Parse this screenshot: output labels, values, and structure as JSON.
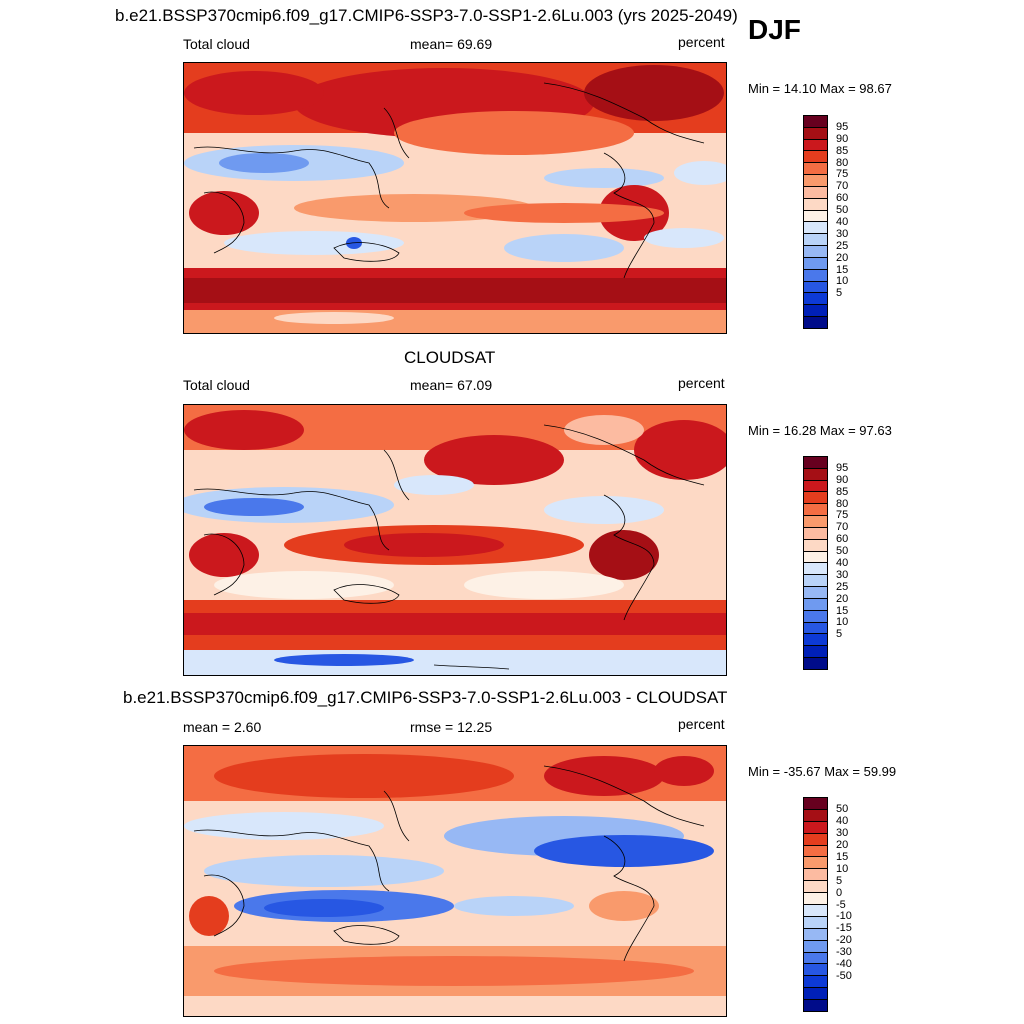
{
  "season": "DJF",
  "panels": [
    {
      "id": "model",
      "title": "b.e21.BSSP370cmip6.f09_g17.CMIP6-SSP3-7.0-SSP1-2.6Lu.003 (yrs 2025-2049)",
      "left_label": "Total cloud",
      "center_label": "mean=  69.69",
      "units": "percent",
      "minmax": "Min =  14.10 Max =  98.67",
      "colorbar": {
        "colors": [
          "#67001f",
          "#a50f15",
          "#cb181d",
          "#e43d1e",
          "#f46d43",
          "#f99a6c",
          "#fcbba1",
          "#fdd9c5",
          "#fdf1e6",
          "#d8e7fb",
          "#b9d3f8",
          "#97b8f4",
          "#6f9af0",
          "#4a78eb",
          "#2757e3",
          "#0d3ad6",
          "#0020b8",
          "#000c8a"
        ],
        "labels": [
          "95",
          "90",
          "85",
          "80",
          "75",
          "70",
          "60",
          "50",
          "40",
          "30",
          "25",
          "20",
          "15",
          "10",
          "5"
        ]
      }
    },
    {
      "id": "obs",
      "title": "CLOUDSAT",
      "left_label": "Total cloud",
      "center_label": "mean=  67.09",
      "units": "percent",
      "minmax": "Min =  16.28 Max =  97.63",
      "colorbar": {
        "colors": [
          "#67001f",
          "#a50f15",
          "#cb181d",
          "#e43d1e",
          "#f46d43",
          "#f99a6c",
          "#fcbba1",
          "#fdd9c5",
          "#fdf1e6",
          "#d8e7fb",
          "#b9d3f8",
          "#97b8f4",
          "#6f9af0",
          "#4a78eb",
          "#2757e3",
          "#0d3ad6",
          "#0020b8",
          "#000c8a"
        ],
        "labels": [
          "95",
          "90",
          "85",
          "80",
          "75",
          "70",
          "60",
          "50",
          "40",
          "30",
          "25",
          "20",
          "15",
          "10",
          "5"
        ]
      }
    },
    {
      "id": "diff",
      "title": "b.e21.BSSP370cmip6.f09_g17.CMIP6-SSP3-7.0-SSP1-2.6Lu.003 - CLOUDSAT",
      "left_label": "mean =   2.60",
      "center_label": "rmse =  12.25",
      "units": "percent",
      "minmax": "Min = -35.67 Max =  59.99",
      "colorbar": {
        "colors": [
          "#67001f",
          "#a50f15",
          "#cb181d",
          "#e43d1e",
          "#f46d43",
          "#f99a6c",
          "#fcbba1",
          "#fdd9c5",
          "#fdf1e6",
          "#d8e7fb",
          "#b9d3f8",
          "#97b8f4",
          "#6f9af0",
          "#4a78eb",
          "#2757e3",
          "#0d3ad6",
          "#0020b8",
          "#000c8a"
        ],
        "labels": [
          "50",
          "40",
          "30",
          "20",
          "15",
          "10",
          "5",
          "0",
          "-5",
          "-10",
          "-15",
          "-20",
          "-30",
          "-40",
          "-50"
        ]
      }
    }
  ]
}
